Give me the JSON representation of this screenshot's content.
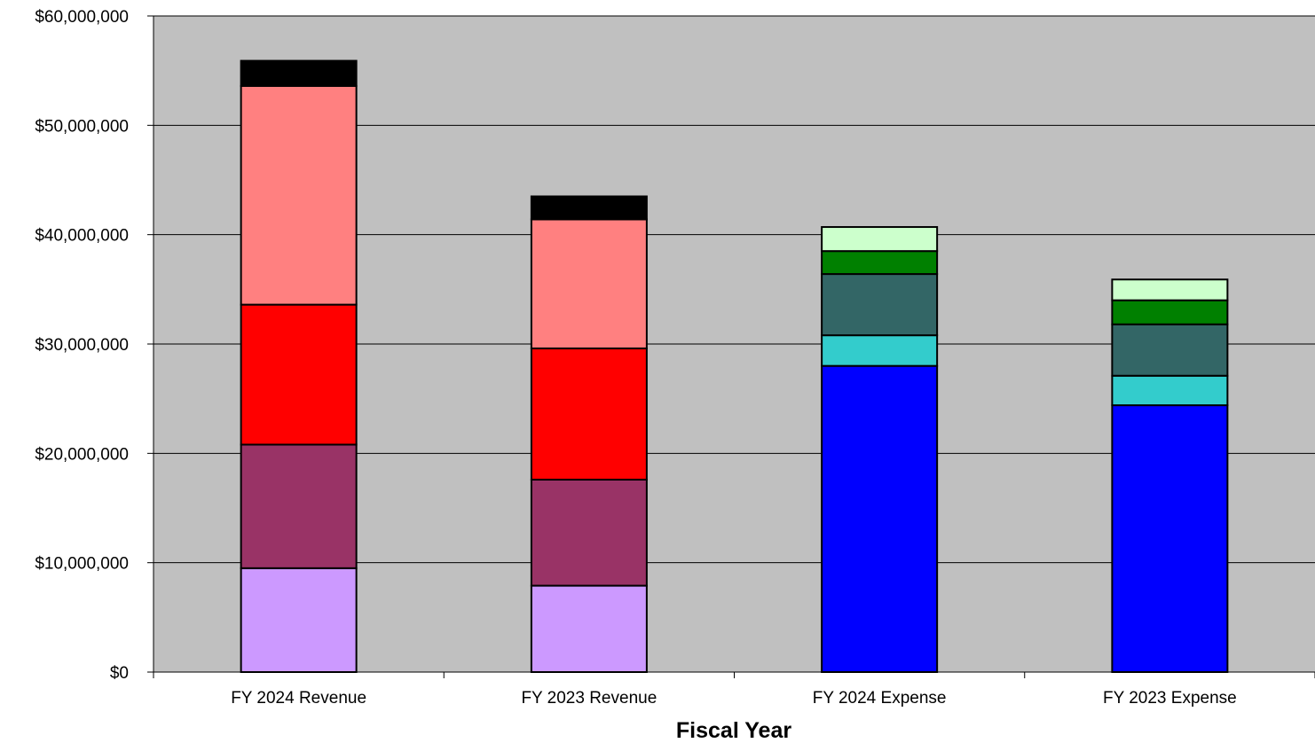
{
  "chart_data": {
    "type": "bar",
    "stacked": true,
    "title": "",
    "xlabel": "Fiscal Year",
    "ylabel": "",
    "ylim": [
      0,
      60000000
    ],
    "grid": true,
    "legend": "none",
    "plot_background": "#C0C0C0",
    "categories": [
      "FY 2024 Revenue",
      "FY 2023 Revenue",
      "FY 2024 Expense",
      "FY 2023 Expense"
    ],
    "y_ticks": [
      {
        "value": 0,
        "label": "$0"
      },
      {
        "value": 10000000,
        "label": "$10,000,000"
      },
      {
        "value": 20000000,
        "label": "$20,000,000"
      },
      {
        "value": 30000000,
        "label": "$30,000,000"
      },
      {
        "value": 40000000,
        "label": "$40,000,000"
      },
      {
        "value": 50000000,
        "label": "$50,000,000"
      },
      {
        "value": 60000000,
        "label": "$60,000,000"
      }
    ],
    "series": [
      {
        "color": "#CC99FF",
        "values": [
          9500000,
          7900000,
          0,
          0
        ]
      },
      {
        "color": "#993366",
        "values": [
          11300000,
          9700000,
          0,
          0
        ]
      },
      {
        "color": "#FF0000",
        "values": [
          12800000,
          12000000,
          0,
          0
        ]
      },
      {
        "color": "#FF8080",
        "values": [
          20000000,
          11800000,
          0,
          0
        ]
      },
      {
        "color": "#000000",
        "values": [
          2300000,
          2100000,
          0,
          0
        ]
      },
      {
        "color": "#0000FF",
        "values": [
          0,
          0,
          28000000,
          24400000
        ]
      },
      {
        "color": "#33CCCC",
        "values": [
          0,
          0,
          2800000,
          2700000
        ]
      },
      {
        "color": "#336666",
        "values": [
          0,
          0,
          5600000,
          4700000
        ]
      },
      {
        "color": "#008000",
        "values": [
          0,
          0,
          2100000,
          2200000
        ]
      },
      {
        "color": "#CCFFCC",
        "values": [
          0,
          0,
          2200000,
          1900000
        ]
      }
    ]
  }
}
